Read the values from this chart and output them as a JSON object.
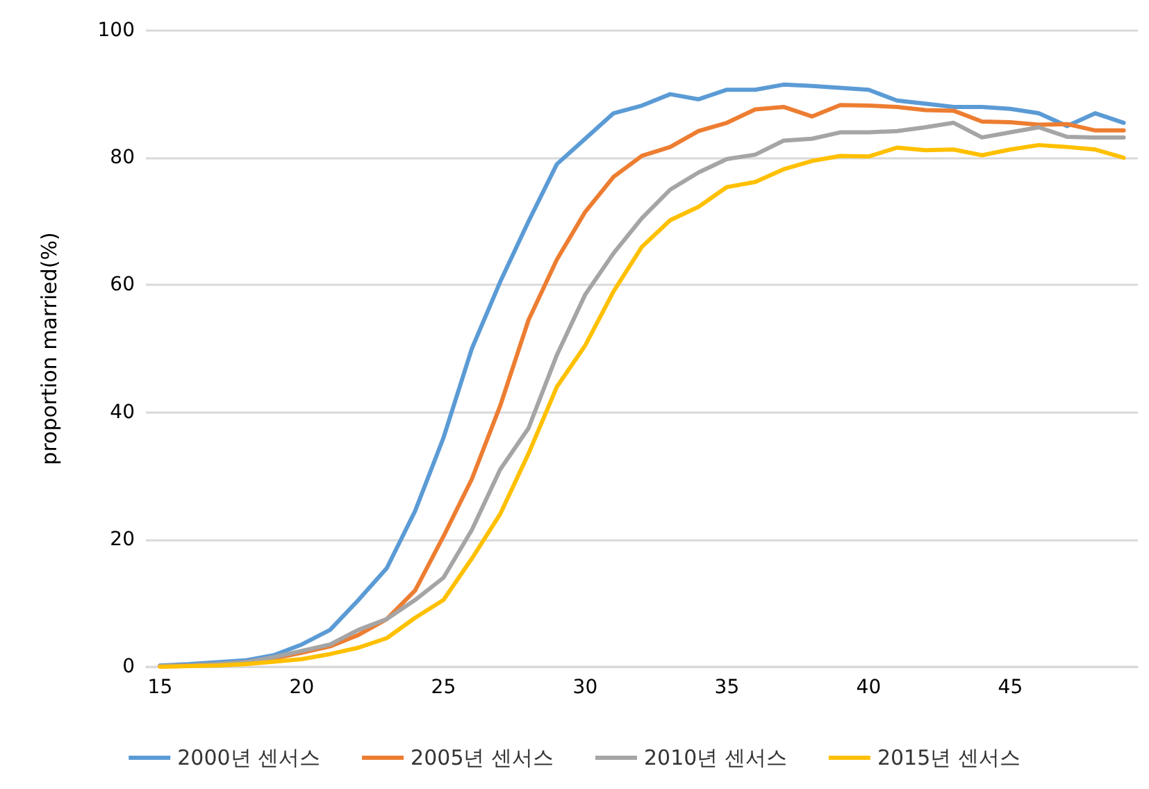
{
  "chart_data": {
    "type": "line",
    "ylabel": "proportion married(%)",
    "x": [
      15,
      16,
      17,
      18,
      19,
      20,
      21,
      22,
      23,
      24,
      25,
      26,
      27,
      28,
      29,
      30,
      31,
      32,
      33,
      34,
      35,
      36,
      37,
      38,
      39,
      40,
      41,
      42,
      43,
      44,
      45,
      46,
      47,
      48,
      49
    ],
    "series": [
      {
        "name": "2000년 센서스",
        "color": "#5b9bd5",
        "values": [
          0.2,
          0.4,
          0.7,
          1,
          1.8,
          3.5,
          5.8,
          10.5,
          15.5,
          24.5,
          36,
          50,
          60.5,
          70,
          79,
          83,
          87,
          88.2,
          90,
          89.2,
          90.7,
          90.7,
          91.5,
          91.3,
          91,
          90.7,
          89,
          88.5,
          88,
          88,
          87.7,
          87,
          85,
          87,
          85.5
        ]
      },
      {
        "name": "2005년 센서스",
        "color": "#ed7d31",
        "values": [
          0.1,
          0.2,
          0.4,
          0.7,
          1.3,
          2.2,
          3.2,
          5,
          7.5,
          12,
          20.5,
          29.5,
          41,
          54.5,
          64,
          71.5,
          77,
          80.3,
          81.7,
          84.2,
          85.5,
          87.6,
          88,
          86.5,
          88.3,
          88.2,
          88,
          87.5,
          87.4,
          85.7,
          85.6,
          85.2,
          85.3,
          84.3,
          84.3
        ]
      },
      {
        "name": "2010년 센서스",
        "color": "#a5a5a5",
        "values": [
          0.1,
          0.2,
          0.4,
          0.7,
          1.5,
          2.5,
          3.5,
          5.8,
          7.5,
          10.5,
          14,
          21.5,
          31,
          37.5,
          49,
          58.5,
          65,
          70.5,
          75,
          77.7,
          79.8,
          80.5,
          82.7,
          83,
          84,
          84,
          84.2,
          84.8,
          85.5,
          83.2,
          84,
          84.8,
          83.3,
          83.2,
          83.2
        ]
      },
      {
        "name": "2015년 센서스",
        "color": "#ffc000",
        "values": [
          0,
          0.1,
          0.2,
          0.4,
          0.8,
          1.2,
          2,
          3,
          4.5,
          7.7,
          10.5,
          17,
          24,
          33.5,
          44,
          50.5,
          59,
          66,
          70.2,
          72.3,
          75.4,
          76.2,
          78.2,
          79.5,
          80.3,
          80.2,
          81.6,
          81.2,
          81.3,
          80.4,
          81.3,
          82,
          81.7,
          81.3,
          80
        ]
      }
    ],
    "xlim": [
      14.5,
      49.5
    ],
    "xticks": [
      15,
      20,
      25,
      30,
      35,
      40,
      45
    ],
    "ylim": [
      0,
      100
    ],
    "yticks": [
      0,
      20,
      40,
      60,
      80,
      100
    ],
    "grid": "y",
    "legend": "bottom",
    "marker": "none",
    "line_style": "solid"
  }
}
